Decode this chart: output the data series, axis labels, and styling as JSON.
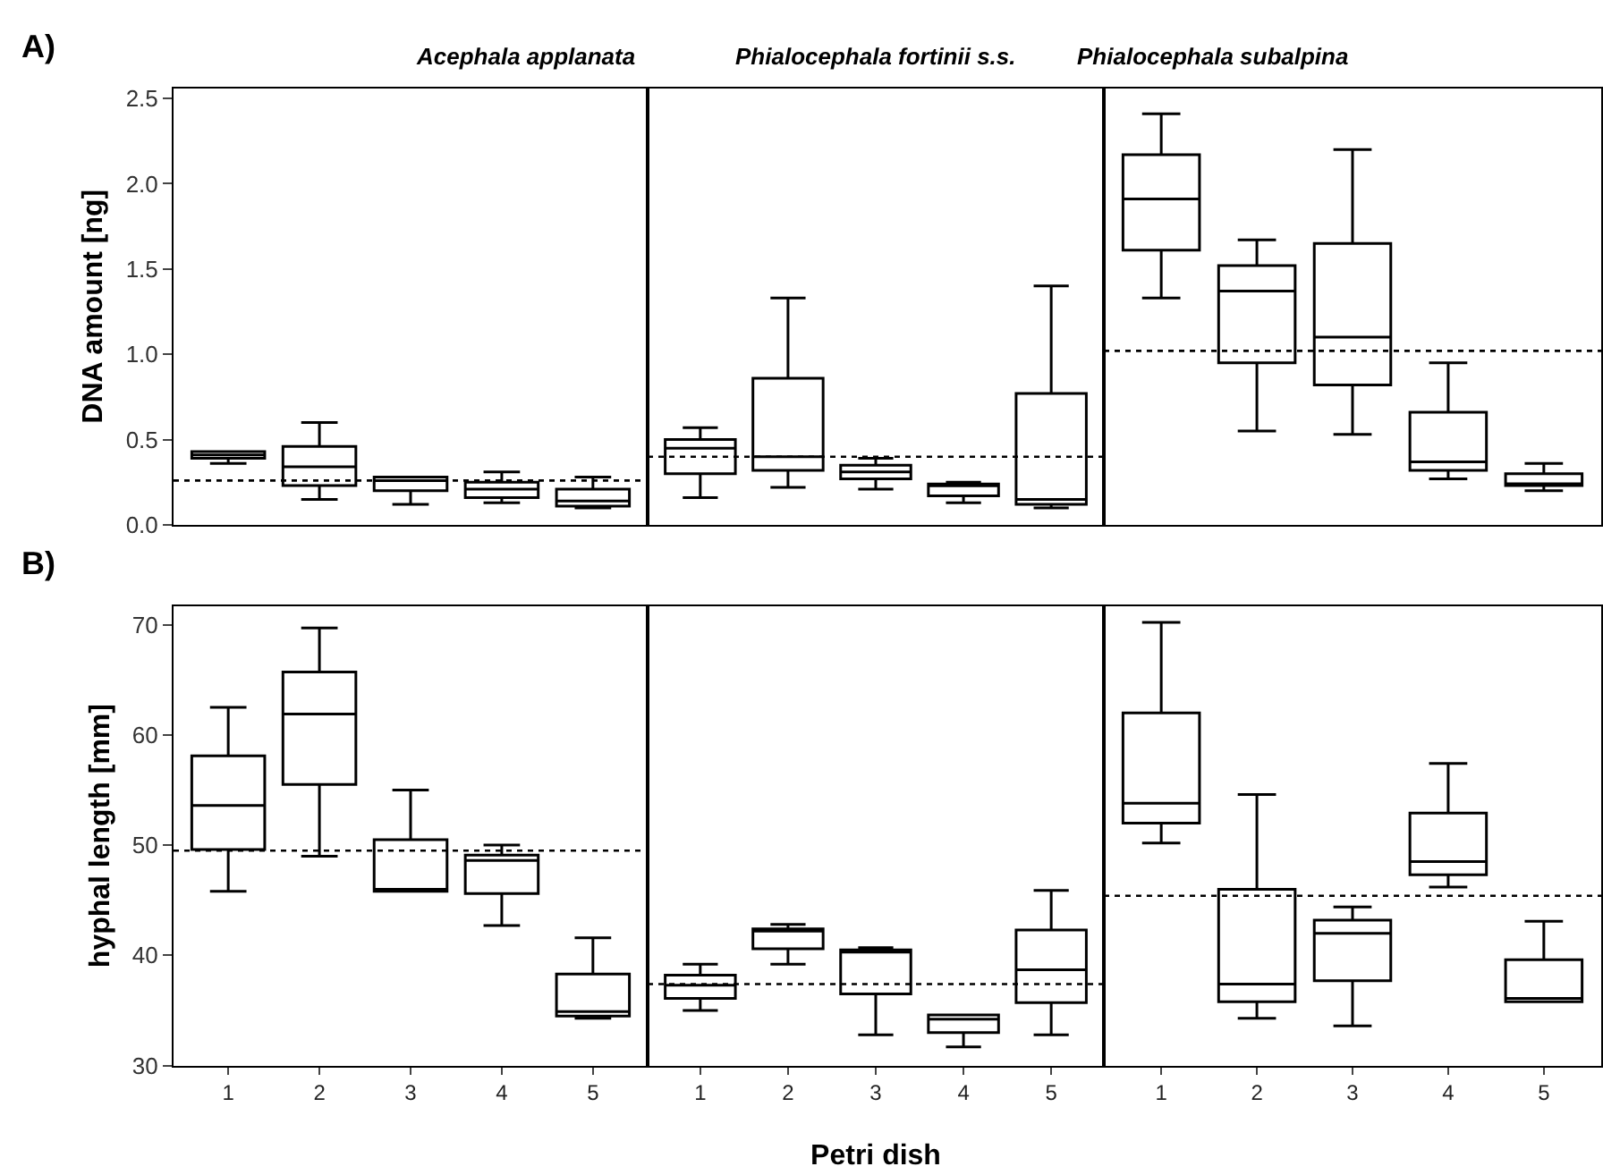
{
  "chart_data": [
    {
      "type": "box",
      "title": "Acephala applanata",
      "ylabel": "DNA amount [ng]",
      "annotations": [
        "A)"
      ],
      "categories": [
        "1",
        "2",
        "3",
        "4",
        "5"
      ],
      "tick_labels": "y",
      "ylim": [
        0,
        2.56
      ],
      "yticks": [
        {
          "value": 0,
          "label": "0.0"
        },
        {
          "value": 0.5,
          "label": "0.5"
        },
        {
          "value": 1,
          "label": "1.0"
        },
        {
          "value": 1.5,
          "label": "1.5"
        },
        {
          "value": 2,
          "label": "2.0"
        },
        {
          "value": 2.5,
          "label": "2.5"
        }
      ],
      "ref_lines": [
        {
          "axis": "y",
          "value": 0.26,
          "color": "#000000",
          "line_style": "dotted"
        }
      ],
      "boxes": [
        {
          "low": 0.36,
          "q1": 0.39,
          "median": 0.41,
          "q3": 0.43,
          "high": 0.43
        },
        {
          "low": 0.15,
          "q1": 0.23,
          "median": 0.34,
          "q3": 0.46,
          "high": 0.6
        },
        {
          "low": 0.12,
          "q1": 0.2,
          "median": 0.26,
          "q3": 0.28,
          "high": 0.28
        },
        {
          "low": 0.13,
          "q1": 0.16,
          "median": 0.21,
          "q3": 0.25,
          "high": 0.31
        },
        {
          "low": 0.1,
          "q1": 0.11,
          "median": 0.14,
          "q3": 0.21,
          "high": 0.28
        }
      ]
    },
    {
      "type": "box",
      "title": "Phialocephala fortinii s.s.",
      "categories": [
        "1",
        "2",
        "3",
        "4",
        "5"
      ],
      "tick_labels": false,
      "ylim": [
        0,
        2.56
      ],
      "yticks": [
        {
          "value": 0,
          "label": null
        },
        {
          "value": 0.5,
          "label": null
        },
        {
          "value": 1,
          "label": null
        },
        {
          "value": 1.5,
          "label": null
        },
        {
          "value": 2,
          "label": null
        },
        {
          "value": 2.5,
          "label": null
        }
      ],
      "ref_lines": [
        {
          "axis": "y",
          "value": 0.4,
          "color": "#000000",
          "line_style": "dotted"
        }
      ],
      "boxes": [
        {
          "low": 0.16,
          "q1": 0.3,
          "median": 0.45,
          "q3": 0.5,
          "high": 0.57
        },
        {
          "low": 0.22,
          "q1": 0.32,
          "median": 0.4,
          "q3": 0.86,
          "high": 1.33
        },
        {
          "low": 0.21,
          "q1": 0.27,
          "median": 0.31,
          "q3": 0.35,
          "high": 0.39
        },
        {
          "low": 0.13,
          "q1": 0.17,
          "median": 0.23,
          "q3": 0.24,
          "high": 0.25
        },
        {
          "low": 0.1,
          "q1": 0.12,
          "median": 0.15,
          "q3": 0.77,
          "high": 1.4
        }
      ]
    },
    {
      "type": "box",
      "title": "Phialocephala subalpina",
      "categories": [
        "1",
        "2",
        "3",
        "4",
        "5"
      ],
      "tick_labels": false,
      "ylim": [
        0,
        2.56
      ],
      "yticks": [
        {
          "value": 0,
          "label": null
        },
        {
          "value": 0.5,
          "label": null
        },
        {
          "value": 1,
          "label": null
        },
        {
          "value": 1.5,
          "label": null
        },
        {
          "value": 2,
          "label": null
        },
        {
          "value": 2.5,
          "label": null
        }
      ],
      "ref_lines": [
        {
          "axis": "y",
          "value": 1.02,
          "color": "#000000",
          "line_style": "dotted"
        }
      ],
      "boxes": [
        {
          "low": 1.33,
          "q1": 1.61,
          "median": 1.91,
          "q3": 2.17,
          "high": 2.41
        },
        {
          "low": 0.55,
          "q1": 0.95,
          "median": 1.37,
          "q3": 1.52,
          "high": 1.67
        },
        {
          "low": 0.53,
          "q1": 0.82,
          "median": 1.1,
          "q3": 1.65,
          "high": 2.2
        },
        {
          "low": 0.27,
          "q1": 0.32,
          "median": 0.37,
          "q3": 0.66,
          "high": 0.95
        },
        {
          "low": 0.2,
          "q1": 0.23,
          "median": 0.24,
          "q3": 0.3,
          "high": 0.36
        }
      ]
    },
    {
      "type": "box",
      "ylabel": "hyphal length [mm]",
      "annotations": [
        "B)"
      ],
      "categories": [
        "1",
        "2",
        "3",
        "4",
        "5"
      ],
      "ylim": [
        30,
        71.7
      ],
      "yticks": [
        30,
        40,
        50,
        60,
        70
      ],
      "ref_lines": [
        {
          "axis": "y",
          "value": 49.5,
          "color": "#000000",
          "line_style": "dotted"
        }
      ],
      "boxes": [
        {
          "low": 45.8,
          "q1": 49.6,
          "median": 53.6,
          "q3": 58.1,
          "high": 62.5
        },
        {
          "low": 49.0,
          "q1": 55.5,
          "median": 61.9,
          "q3": 65.7,
          "high": 69.7
        },
        {
          "low": 45.8,
          "q1": 45.8,
          "median": 46.0,
          "q3": 50.5,
          "high": 55.0
        },
        {
          "low": 42.7,
          "q1": 45.6,
          "median": 48.6,
          "q3": 49.1,
          "high": 50.0
        },
        {
          "low": 34.3,
          "q1": 34.5,
          "median": 34.9,
          "q3": 38.3,
          "high": 41.6
        }
      ]
    },
    {
      "type": "box",
      "xlabel": "Petri dish",
      "categories": [
        "1",
        "2",
        "3",
        "4",
        "5"
      ],
      "tick_labels": "x",
      "ylim": [
        30,
        71.7
      ],
      "yticks": [
        {
          "value": 30,
          "label": null
        },
        {
          "value": 40,
          "label": null
        },
        {
          "value": 50,
          "label": null
        },
        {
          "value": 60,
          "label": null
        },
        {
          "value": 70,
          "label": null
        }
      ],
      "ref_lines": [
        {
          "axis": "y",
          "value": 37.4,
          "color": "#000000",
          "line_style": "dotted"
        }
      ],
      "boxes": [
        {
          "low": 35.0,
          "q1": 36.1,
          "median": 37.3,
          "q3": 38.2,
          "high": 39.2
        },
        {
          "low": 39.2,
          "q1": 40.6,
          "median": 42.2,
          "q3": 42.4,
          "high": 42.8
        },
        {
          "low": 32.8,
          "q1": 36.5,
          "median": 40.3,
          "q3": 40.5,
          "high": 40.7
        },
        {
          "low": 31.7,
          "q1": 33.0,
          "median": 34.2,
          "q3": 34.6,
          "high": 34.6
        },
        {
          "low": 32.8,
          "q1": 35.7,
          "median": 38.7,
          "q3": 42.3,
          "high": 45.9
        }
      ]
    },
    {
      "type": "box",
      "categories": [
        "1",
        "2",
        "3",
        "4",
        "5"
      ],
      "tick_labels": "x",
      "ylim": [
        30,
        71.7
      ],
      "yticks": [
        {
          "value": 30,
          "label": null
        },
        {
          "value": 40,
          "label": null
        },
        {
          "value": 50,
          "label": null
        },
        {
          "value": 60,
          "label": null
        },
        {
          "value": 70,
          "label": null
        }
      ],
      "ref_lines": [
        {
          "axis": "y",
          "value": 45.4,
          "color": "#000000",
          "line_style": "dotted"
        }
      ],
      "boxes": [
        {
          "low": 50.2,
          "q1": 52.0,
          "median": 53.8,
          "q3": 62.0,
          "high": 70.2
        },
        {
          "low": 34.3,
          "q1": 35.8,
          "median": 37.4,
          "q3": 46.0,
          "high": 54.6
        },
        {
          "low": 33.6,
          "q1": 37.7,
          "median": 42.0,
          "q3": 43.2,
          "high": 44.4
        },
        {
          "low": 46.2,
          "q1": 47.3,
          "median": 48.5,
          "q3": 52.9,
          "high": 57.4
        },
        {
          "low": 35.8,
          "q1": 35.8,
          "median": 36.1,
          "q3": 39.6,
          "high": 43.1
        }
      ]
    }
  ]
}
